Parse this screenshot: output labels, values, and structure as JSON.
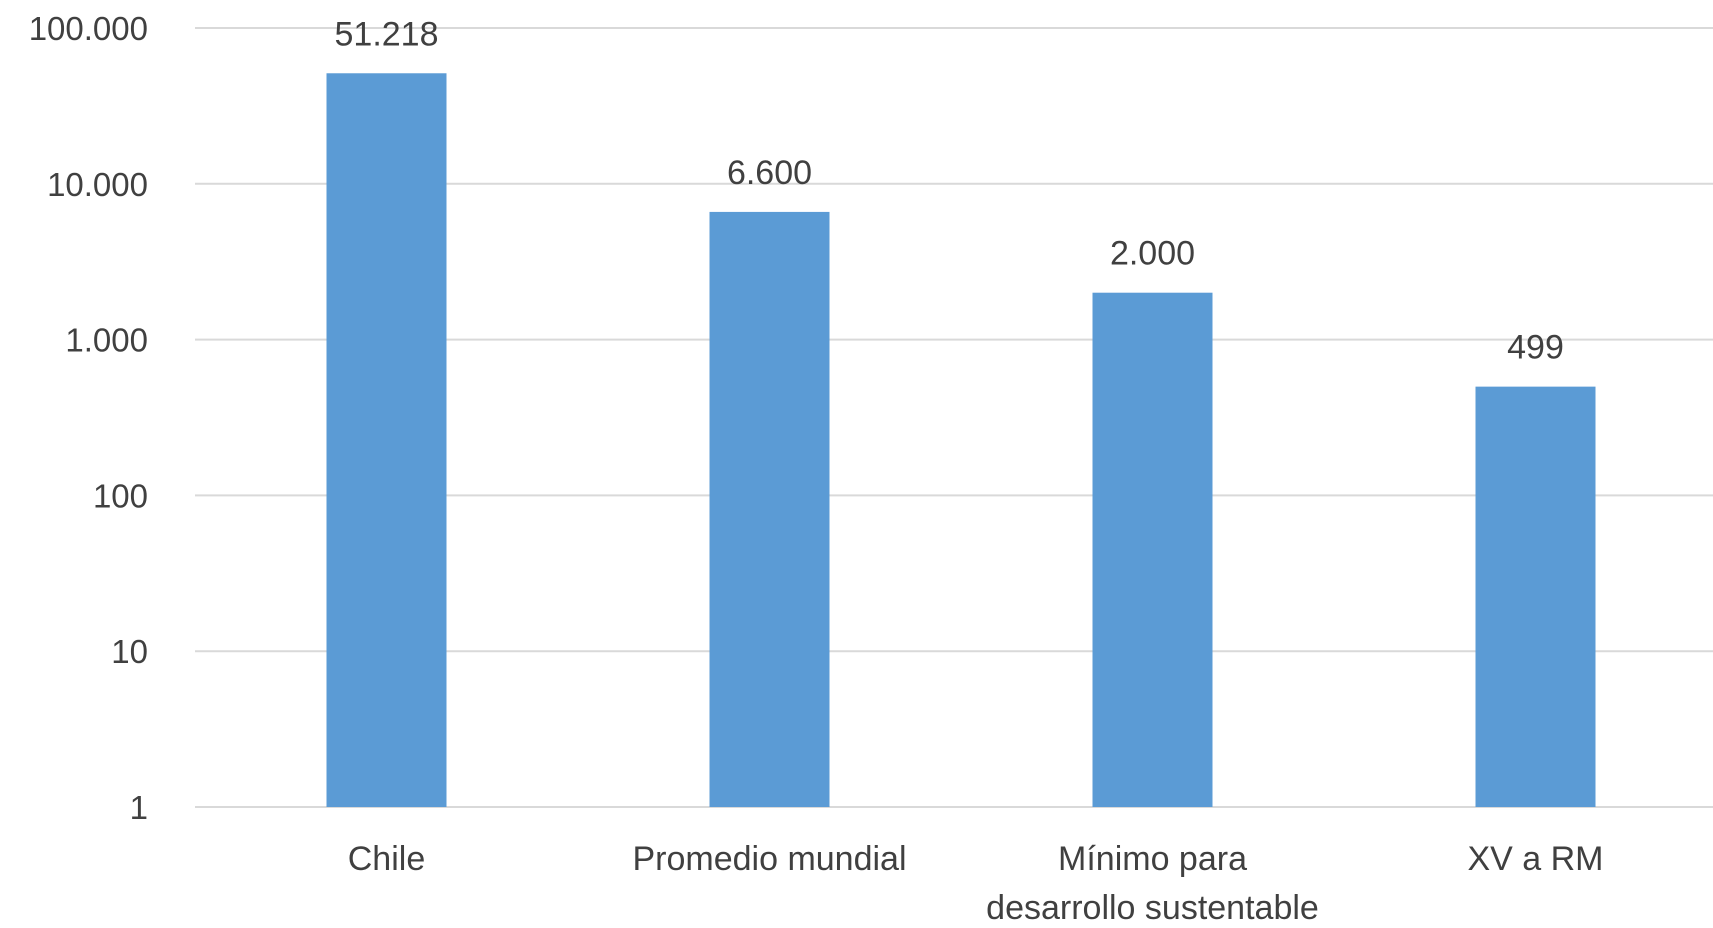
{
  "chart_data": {
    "type": "bar",
    "yscale": "log",
    "ylim": [
      1,
      100000
    ],
    "yticks": [
      {
        "value": 1,
        "label": "1"
      },
      {
        "value": 10,
        "label": "10"
      },
      {
        "value": 100,
        "label": "100"
      },
      {
        "value": 1000,
        "label": "1.000"
      },
      {
        "value": 10000,
        "label": "10.000"
      },
      {
        "value": 100000,
        "label": "100.000"
      }
    ],
    "categories": [
      [
        "Chile"
      ],
      [
        "Promedio mundial"
      ],
      [
        "Mínimo para",
        "desarrollo sustentable"
      ],
      [
        "XV a RM"
      ]
    ],
    "values": [
      51218,
      6600,
      2000,
      499
    ],
    "data_labels": [
      "51.218",
      "6.600",
      "2.000",
      "499"
    ],
    "bar_color": "#5b9bd5",
    "grid_color": "#d9d9d9",
    "text_color": "#404040",
    "grid": true,
    "legend": "none"
  }
}
